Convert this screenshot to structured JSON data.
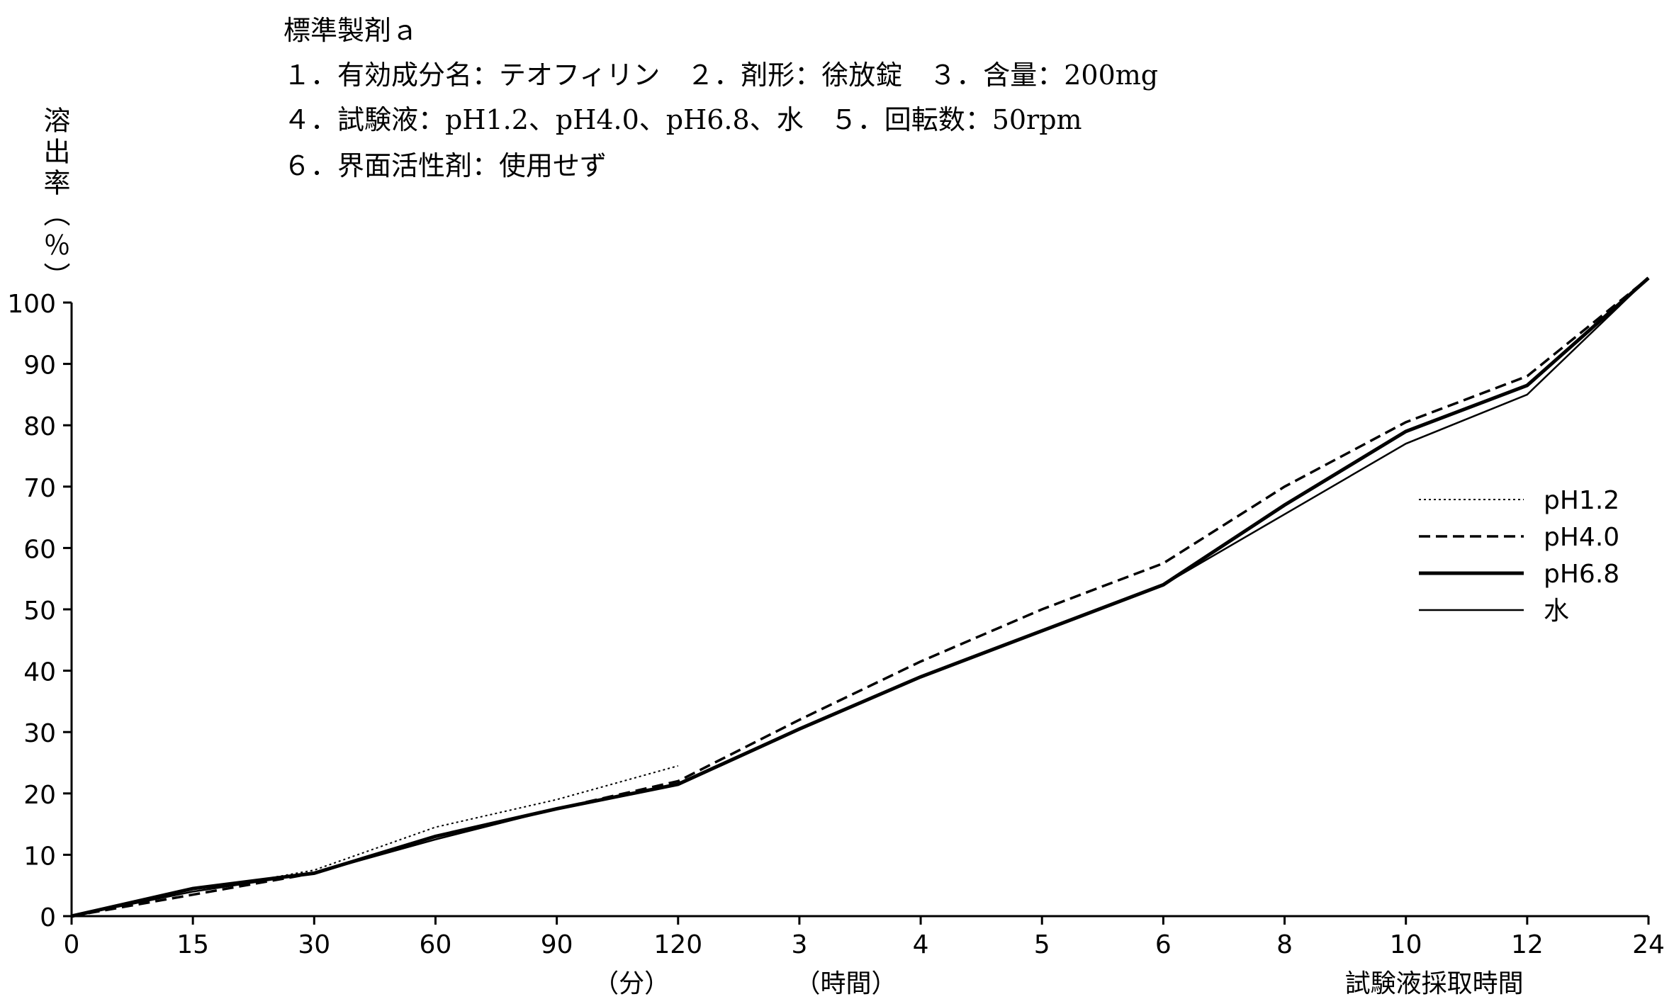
{
  "header": {
    "title": "標準製剤ａ",
    "line1": "１．有効成分名：テオフィリン　２．剤形：徐放錠　３．含量：200mg",
    "line2": "４．試験液：pH1.2、pH4.0、pH6.8、水　５．回転数：50rpm",
    "line3": "６．界面活性剤：使用せず"
  },
  "chart_data": {
    "type": "line",
    "title": "標準製剤ａ",
    "ylabel": "溶出率（％）",
    "xlabel": "試験液採取時間",
    "x_unit_labels": [
      "（分）",
      "（時間）"
    ],
    "categories": [
      "0",
      "15",
      "30",
      "60",
      "90",
      "120",
      "3",
      "4",
      "5",
      "6",
      "8",
      "10",
      "12",
      "24"
    ],
    "ylim": [
      0,
      100
    ],
    "yticks": [
      0,
      10,
      20,
      30,
      40,
      50,
      60,
      70,
      80,
      90,
      100
    ],
    "grid": false,
    "legend_position": "right",
    "series": [
      {
        "name": "pH1.2",
        "style": "dotted",
        "values": [
          0,
          4,
          7.5,
          14.5,
          19,
          24.5,
          null,
          null,
          null,
          null,
          null,
          null,
          null,
          null
        ]
      },
      {
        "name": "pH4.0",
        "style": "dashed",
        "values": [
          0,
          3.5,
          7,
          13,
          17.5,
          22,
          32,
          41.5,
          50,
          57.5,
          70,
          80.5,
          88,
          104
        ]
      },
      {
        "name": "pH6.8",
        "style": "thick",
        "values": [
          0,
          4.5,
          7,
          13,
          17.5,
          21.5,
          30.5,
          39,
          46.5,
          54,
          67,
          79,
          86.5,
          104
        ]
      },
      {
        "name": "水",
        "style": "thin",
        "values": [
          0,
          4,
          7,
          12.5,
          17.5,
          21.5,
          30.5,
          39,
          46.5,
          54,
          65.5,
          77,
          85,
          104
        ]
      }
    ]
  }
}
